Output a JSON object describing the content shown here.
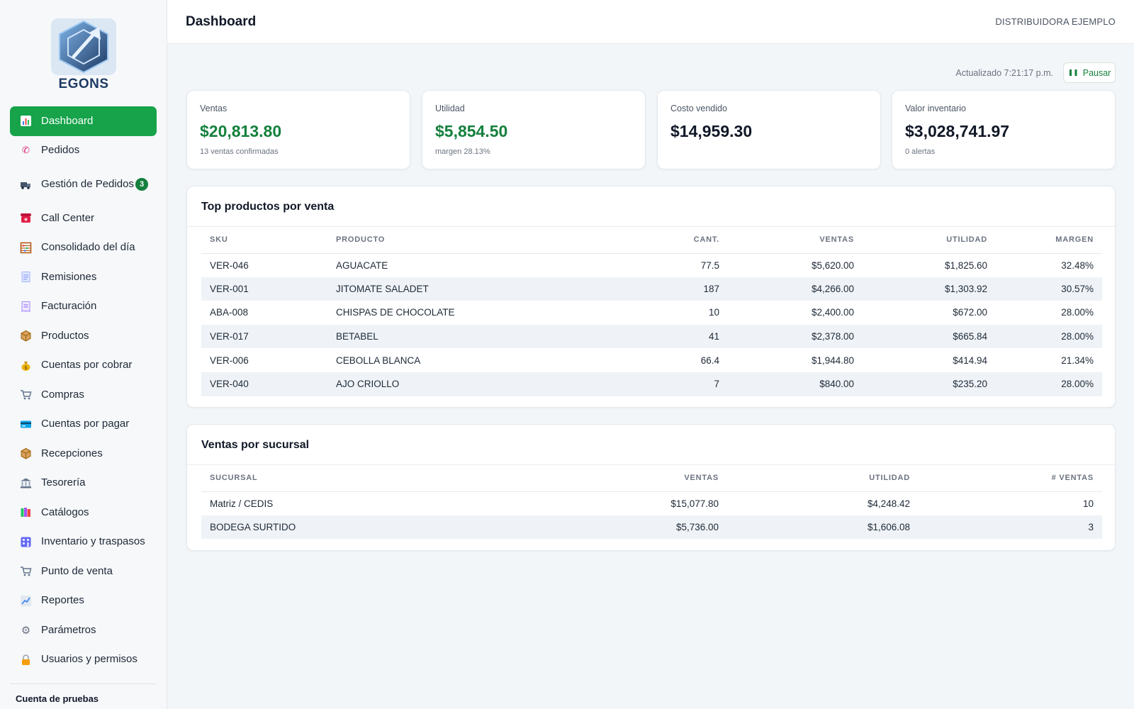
{
  "brand": {
    "name": "EGONS",
    "accent": "#16a34a"
  },
  "sidebar": {
    "items": [
      {
        "label": "Dashboard",
        "icon": "bar-chart-icon",
        "active": true
      },
      {
        "label": "Pedidos",
        "icon": "phone-icon"
      },
      {
        "label": "Gestión de Pedidos",
        "icon": "truck-icon",
        "badge": "3"
      },
      {
        "label": "Call Center",
        "icon": "telephone-icon"
      },
      {
        "label": "Consolidado del día",
        "icon": "abacus-icon"
      },
      {
        "label": "Remisiones",
        "icon": "document-icon"
      },
      {
        "label": "Facturación",
        "icon": "receipt-icon"
      },
      {
        "label": "Productos",
        "icon": "package-icon"
      },
      {
        "label": "Cuentas por cobrar",
        "icon": "money-bag-icon"
      },
      {
        "label": "Compras",
        "icon": "cart-icon"
      },
      {
        "label": "Cuentas por pagar",
        "icon": "credit-card-icon"
      },
      {
        "label": "Recepciones",
        "icon": "package-icon"
      },
      {
        "label": "Tesorería",
        "icon": "bank-icon"
      },
      {
        "label": "Catálogos",
        "icon": "books-icon"
      },
      {
        "label": "Inventario y traspasos",
        "icon": "building-icon"
      },
      {
        "label": "Punto de venta",
        "icon": "cart-icon"
      },
      {
        "label": "Reportes",
        "icon": "trend-chart-icon"
      },
      {
        "label": "Parámetros",
        "icon": "gear-icon"
      },
      {
        "label": "Usuarios y permisos",
        "icon": "lock-icon"
      }
    ],
    "account_label": "Cuenta de pruebas"
  },
  "header": {
    "title": "Dashboard",
    "company": "DISTRIBUIDORA EJEMPLO"
  },
  "status": {
    "updated": "Actualizado 7:21:17 p.m.",
    "pause_label": "Pausar"
  },
  "stats": [
    {
      "label": "Ventas",
      "value": "$20,813.80",
      "sub": "13 ventas confirmadas",
      "color": "green"
    },
    {
      "label": "Utilidad",
      "value": "$5,854.50",
      "sub": "margen 28.13%",
      "color": "green"
    },
    {
      "label": "Costo vendido",
      "value": "$14,959.30",
      "sub": "",
      "color": "dark"
    },
    {
      "label": "Valor inventario",
      "value": "$3,028,741.97",
      "sub": "0 alertas",
      "color": "dark"
    }
  ],
  "top_products": {
    "title": "Top productos por venta",
    "columns": [
      "SKU",
      "PRODUCTO",
      "CANT.",
      "VENTAS",
      "UTILIDAD",
      "MARGEN"
    ],
    "rows": [
      [
        "VER-046",
        "AGUACATE",
        "77.5",
        "$5,620.00",
        "$1,825.60",
        "32.48%"
      ],
      [
        "VER-001",
        "JITOMATE SALADET",
        "187",
        "$4,266.00",
        "$1,303.92",
        "30.57%"
      ],
      [
        "ABA-008",
        "CHISPAS DE CHOCOLATE",
        "10",
        "$2,400.00",
        "$672.00",
        "28.00%"
      ],
      [
        "VER-017",
        "BETABEL",
        "41",
        "$2,378.00",
        "$665.84",
        "28.00%"
      ],
      [
        "VER-006",
        "CEBOLLA BLANCA",
        "66.4",
        "$1,944.80",
        "$414.94",
        "21.34%"
      ],
      [
        "VER-040",
        "AJO CRIOLLO",
        "7",
        "$840.00",
        "$235.20",
        "28.00%"
      ]
    ]
  },
  "branch_sales": {
    "title": "Ventas por sucursal",
    "columns": [
      "SUCURSAL",
      "VENTAS",
      "UTILIDAD",
      "# VENTAS"
    ],
    "rows": [
      [
        "Matriz / CEDIS",
        "$15,077.80",
        "$4,248.42",
        "10"
      ],
      [
        "BODEGA SURTIDO",
        "$5,736.00",
        "$1,606.08",
        "3"
      ]
    ]
  }
}
